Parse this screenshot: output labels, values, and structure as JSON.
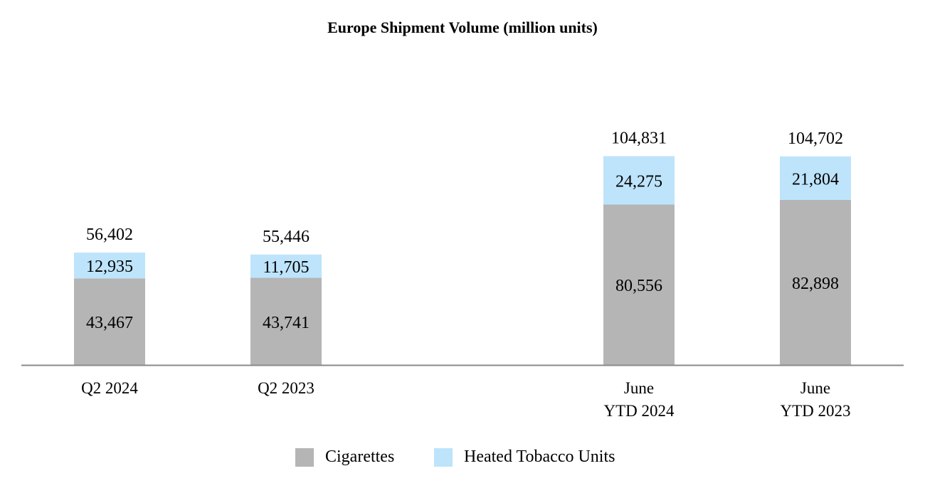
{
  "chart_data": {
    "type": "bar",
    "stacked": true,
    "title": "Europe Shipment Volume (million units)",
    "xlabel": "",
    "ylabel": "",
    "ylim": [
      0,
      120000
    ],
    "grid": false,
    "legend_position": "bottom",
    "categories": [
      [
        "Q2 2024"
      ],
      [
        "Q2 2023"
      ],
      [
        "June",
        "YTD 2024"
      ],
      [
        "June",
        "YTD 2023"
      ]
    ],
    "series": [
      {
        "name": "Cigarettes",
        "color": "#b5b5b5",
        "values": [
          43467,
          43741,
          80556,
          82898
        ],
        "labels": [
          "43,467",
          "43,741",
          "80,556",
          "82,898"
        ]
      },
      {
        "name": "Heated Tobacco Units",
        "color": "#bde4fb",
        "values": [
          12935,
          11705,
          24275,
          21804
        ],
        "labels": [
          "12,935",
          "11,705",
          "24,275",
          "21,804"
        ]
      }
    ],
    "totals": [
      56402,
      55446,
      104831,
      104702
    ],
    "total_labels": [
      "56,402",
      "55,446",
      "104,831",
      "104,702"
    ]
  }
}
